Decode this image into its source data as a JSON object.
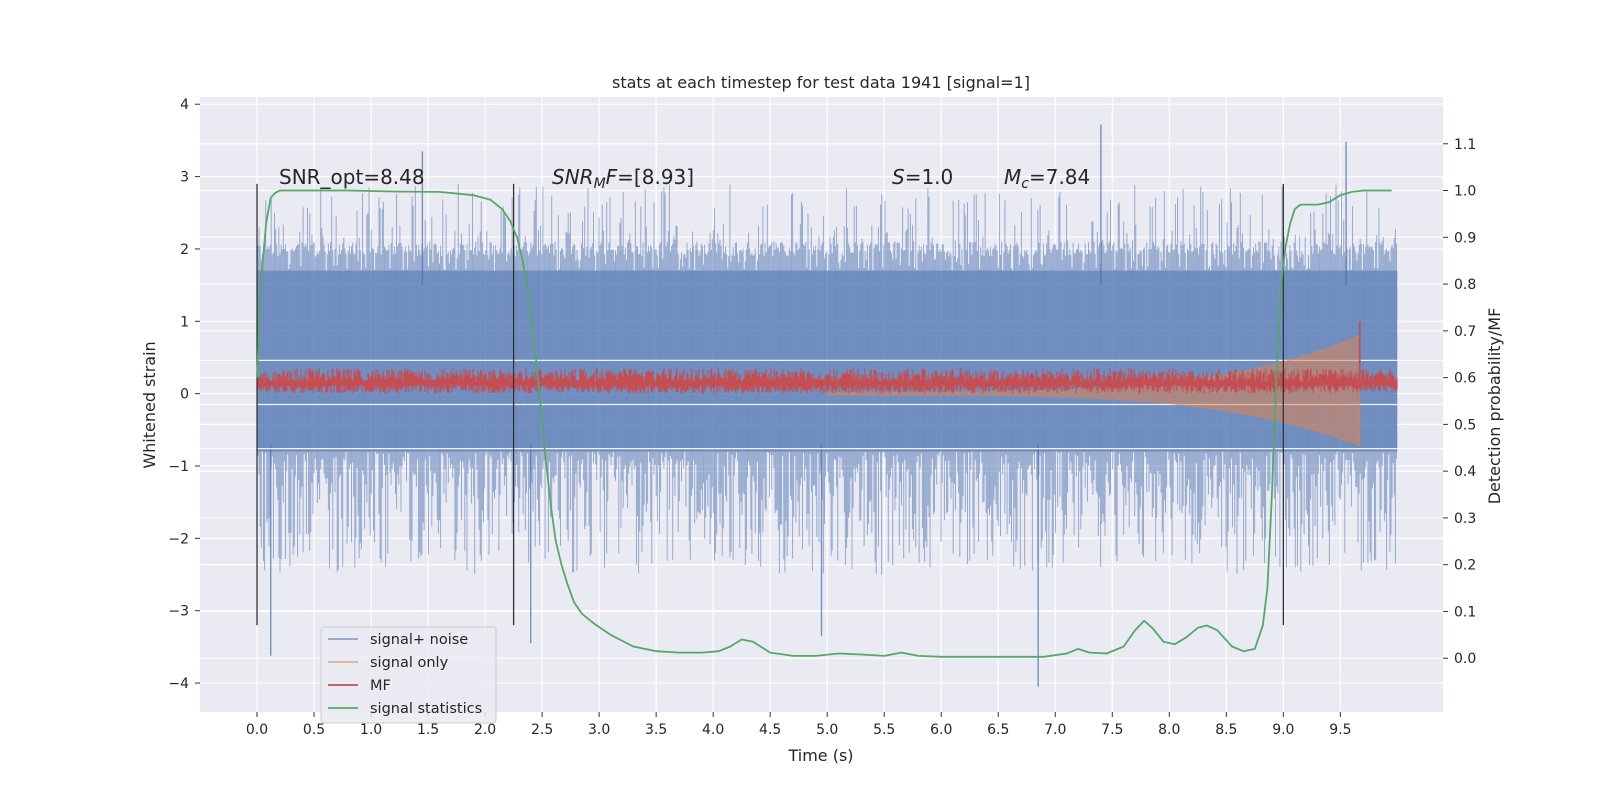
{
  "chart_data": {
    "type": "line",
    "title": "stats at each timestep for test data 1941 [signal=1]",
    "xlabel": "Time (s)",
    "ylabel": "Whitened strain",
    "y2label": "Detection probability/MF",
    "xlim": [
      -0.5,
      10.4
    ],
    "ylim": [
      -4.4,
      4.1
    ],
    "y2lim": [
      -0.115,
      1.2
    ],
    "x_ticks": [
      "0.0",
      "0.5",
      "1.0",
      "1.5",
      "2.0",
      "2.5",
      "3.0",
      "3.5",
      "4.0",
      "4.5",
      "5.0",
      "5.5",
      "6.0",
      "6.5",
      "7.0",
      "7.5",
      "8.0",
      "8.5",
      "9.0",
      "9.5"
    ],
    "y_ticks": [
      "4",
      "3",
      "2",
      "1",
      "0",
      "−1",
      "−2",
      "−3",
      "−4"
    ],
    "y2_ticks": [
      "1.1",
      "1.0",
      "0.9",
      "0.8",
      "0.7",
      "0.6",
      "0.5",
      "0.4",
      "0.3",
      "0.2",
      "0.1",
      "0.0"
    ],
    "grid": true,
    "legend_position": "lower-left",
    "annotations": {
      "snr_opt": "SNR_opt=8.48",
      "snr_mf_var": "SNR",
      "snr_mf_sub": "M",
      "snr_mf_var2": "F",
      "snr_mf_val": "=[8.93]",
      "s_var": "S",
      "s_val": "=1.0",
      "mc_var": "M",
      "mc_sub": "c",
      "mc_val": "=7.84"
    },
    "vertical_markers": [
      0.0,
      2.25,
      9.0
    ],
    "vertical_marker_range": [
      -3.2,
      2.9
    ],
    "colors": {
      "signal_noise": "#4c72b0",
      "signal_only": "#dd8452",
      "mf": "#c44e52",
      "signal_statistics": "#55a868",
      "background": "#eaeaf2",
      "markers": "#333333"
    },
    "series": [
      {
        "name": "signal+ noise",
        "axis": "left",
        "kind": "noise_band",
        "x_range": [
          0.0,
          10.0
        ],
        "core_range": [
          -0.8,
          1.7
        ],
        "typical_peak_range": [
          -2.5,
          2.9
        ],
        "notable_peaks": [
          [
            0.12,
            -3.62
          ],
          [
            1.45,
            3.35
          ],
          [
            2.4,
            -3.45
          ],
          [
            4.95,
            -3.35
          ],
          [
            6.85,
            -4.05
          ],
          [
            7.4,
            3.72
          ],
          [
            9.55,
            3.48
          ]
        ]
      },
      {
        "name": "signal only",
        "axis": "left",
        "kind": "chirp",
        "x_range": [
          5.0,
          9.67
        ],
        "amplitude_start": 0.02,
        "amplitude_end": 0.8
      },
      {
        "name": "MF",
        "axis": "left",
        "kind": "band",
        "x_range": [
          0.0,
          10.0
        ],
        "band": [
          0.0,
          0.35
        ],
        "peak": [
          9.67,
          1.0
        ]
      },
      {
        "name": "signal statistics",
        "axis": "right",
        "x": [
          0.0,
          0.04,
          0.08,
          0.12,
          0.16,
          0.2,
          0.4,
          0.8,
          1.2,
          1.6,
          1.9,
          2.05,
          2.15,
          2.22,
          2.28,
          2.33,
          2.38,
          2.43,
          2.48,
          2.53,
          2.58,
          2.62,
          2.67,
          2.72,
          2.78,
          2.85,
          2.95,
          3.1,
          3.3,
          3.5,
          3.7,
          3.9,
          4.05,
          4.15,
          4.25,
          4.35,
          4.5,
          4.7,
          4.9,
          5.1,
          5.3,
          5.5,
          5.65,
          5.8,
          6.0,
          6.3,
          6.6,
          6.9,
          7.1,
          7.2,
          7.3,
          7.45,
          7.6,
          7.7,
          7.78,
          7.85,
          7.95,
          8.05,
          8.15,
          8.25,
          8.33,
          8.42,
          8.55,
          8.65,
          8.75,
          8.82,
          8.86,
          8.9,
          8.94,
          8.98,
          9.02,
          9.06,
          9.1,
          9.15,
          9.2,
          9.3,
          9.4,
          9.5,
          9.6,
          9.7,
          9.8,
          9.9,
          9.95
        ],
        "values": [
          0.6,
          0.82,
          0.93,
          0.985,
          0.995,
          1.0,
          1.0,
          1.0,
          0.998,
          0.997,
          0.99,
          0.98,
          0.96,
          0.935,
          0.9,
          0.85,
          0.78,
          0.68,
          0.56,
          0.43,
          0.32,
          0.25,
          0.2,
          0.16,
          0.12,
          0.095,
          0.075,
          0.05,
          0.025,
          0.015,
          0.012,
          0.012,
          0.015,
          0.025,
          0.04,
          0.035,
          0.012,
          0.005,
          0.005,
          0.01,
          0.008,
          0.005,
          0.012,
          0.005,
          0.003,
          0.003,
          0.003,
          0.003,
          0.01,
          0.02,
          0.012,
          0.01,
          0.025,
          0.06,
          0.08,
          0.065,
          0.035,
          0.03,
          0.045,
          0.065,
          0.07,
          0.06,
          0.025,
          0.015,
          0.02,
          0.07,
          0.15,
          0.35,
          0.6,
          0.8,
          0.88,
          0.93,
          0.96,
          0.97,
          0.97,
          0.97,
          0.975,
          0.99,
          0.997,
          1.0,
          1.0,
          1.0,
          1.0
        ]
      }
    ]
  }
}
